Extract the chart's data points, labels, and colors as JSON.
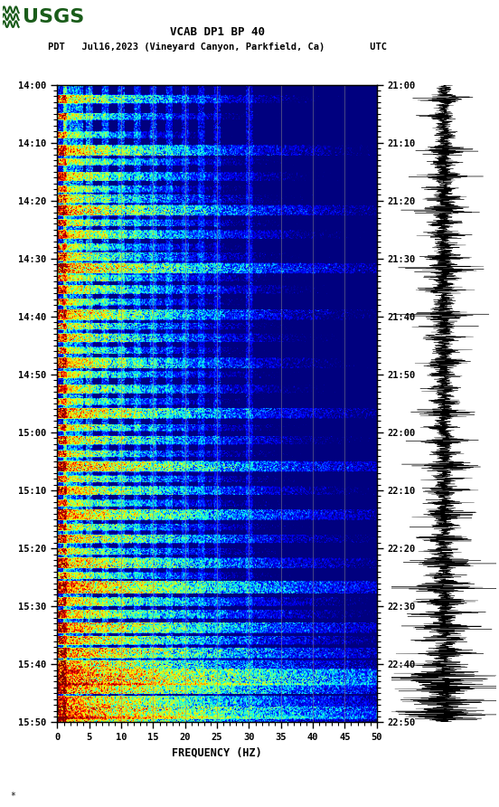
{
  "title_line1": "VCAB DP1 BP 40",
  "title_line2": "PDT   Jul16,2023 (Vineyard Canyon, Parkfield, Ca)        UTC",
  "xlabel": "FREQUENCY (HZ)",
  "freq_min": 0,
  "freq_max": 50,
  "freq_ticks": [
    0,
    5,
    10,
    15,
    20,
    25,
    30,
    35,
    40,
    45,
    50
  ],
  "time_ticks_left": [
    "14:00",
    "14:10",
    "14:20",
    "14:30",
    "14:40",
    "14:50",
    "15:00",
    "15:10",
    "15:20",
    "15:30",
    "15:40",
    "15:50"
  ],
  "time_ticks_right": [
    "21:00",
    "21:10",
    "21:20",
    "21:30",
    "21:40",
    "21:50",
    "22:00",
    "22:10",
    "22:20",
    "22:30",
    "22:40",
    "22:50"
  ],
  "n_time": 660,
  "n_freq": 500,
  "background_color": "#ffffff",
  "spectrogram_cmap": "jet",
  "vertical_lines_freq": [
    5,
    10,
    15,
    20,
    25,
    30,
    35,
    40,
    45
  ],
  "vertical_line_color": "#888888",
  "logo_color": "#1a5c1a",
  "logo_text": "USGS"
}
